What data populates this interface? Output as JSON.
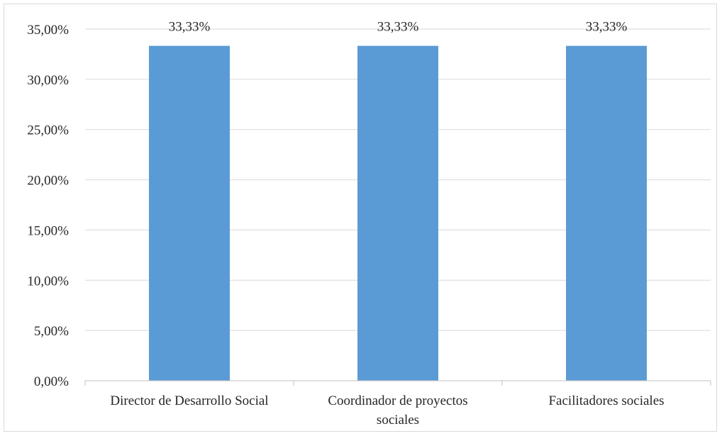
{
  "chart_data": {
    "type": "bar",
    "categories": [
      [
        "Director de Desarrollo Social"
      ],
      [
        "Coordinador de proyectos",
        "sociales"
      ],
      [
        "Facilitadores sociales"
      ]
    ],
    "values": [
      33.33,
      33.33,
      33.33
    ],
    "data_labels": [
      "33,33%",
      "33,33%",
      "33,33%"
    ],
    "ylim": [
      0,
      35
    ],
    "y_ticks": [
      0,
      5,
      10,
      15,
      20,
      25,
      30,
      35
    ],
    "y_tick_labels": [
      "0,00%",
      "5,00%",
      "10,00%",
      "15,00%",
      "20,00%",
      "25,00%",
      "30,00%",
      "35,00%"
    ],
    "grid": true,
    "legend": "none",
    "colors": {
      "bar": "#5b9bd5",
      "grid": "#d9d9d9",
      "axis": "#bfbfbf",
      "text": "#262626"
    }
  }
}
